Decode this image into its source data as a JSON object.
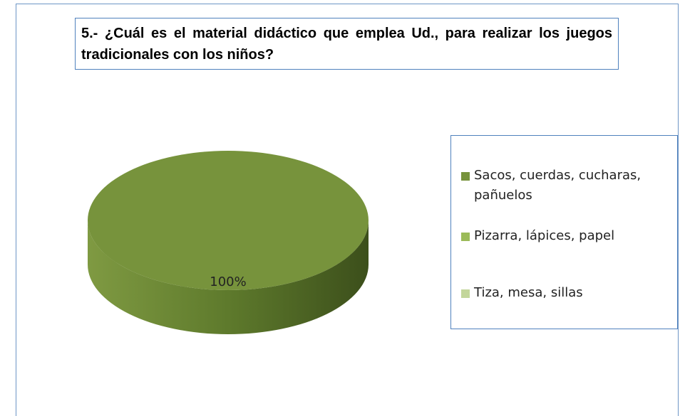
{
  "chart_data": {
    "type": "pie",
    "title": "5.- ¿Cuál es el material didáctico que emplea Ud., para realizar los juegos tradicionales con los niños?",
    "categories": [
      "Sacos, cuerdas, cucharas, pañuelos",
      "Pizarra, lápices, papel",
      "Tiza, mesa, sillas"
    ],
    "values": [
      100,
      0,
      0
    ],
    "value_labels": [
      "100%",
      null,
      null
    ],
    "colors": [
      "#77933c",
      "#9bbb59",
      "#c3d69b"
    ],
    "legend": "right"
  }
}
